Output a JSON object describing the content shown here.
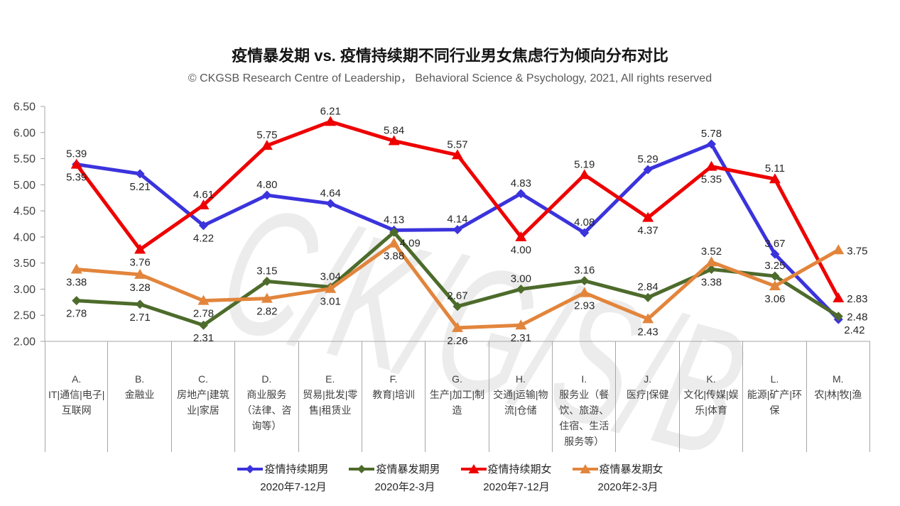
{
  "chart_data": {
    "type": "line",
    "title": "疫情暴发期 vs. 疫情持续期不同行业男女焦虑行为倾向分布对比",
    "subtitle": "© CKGSB Research Centre of Leadership， Behavioral Science & Psychology, 2021, All rights reserved",
    "watermark": "C/K/G/S/B",
    "ylim": [
      2.0,
      6.5
    ],
    "ytick_step": 0.5,
    "grid": false,
    "legend_position": "bottom",
    "categories": [
      {
        "letter": "A.",
        "label": "IT|通信|电子|互联网"
      },
      {
        "letter": "B.",
        "label": "金融业"
      },
      {
        "letter": "C.",
        "label": "房地产|建筑业|家居"
      },
      {
        "letter": "D.",
        "label": "商业服务（法律、咨询等）"
      },
      {
        "letter": "E.",
        "label": "贸易|批发|零售|租赁业"
      },
      {
        "letter": "F.",
        "label": "教育|培训"
      },
      {
        "letter": "G.",
        "label": "生产|加工|制造"
      },
      {
        "letter": "H.",
        "label": "交通|运输|物流|仓储"
      },
      {
        "letter": "I.",
        "label": "服务业（餐饮、旅游、住宿、生活服务等）"
      },
      {
        "letter": "J.",
        "label": "医疗|保健"
      },
      {
        "letter": "K.",
        "label": "文化|传媒|娱乐|体育"
      },
      {
        "letter": "L.",
        "label": "能源|矿产|环保"
      },
      {
        "letter": "M.",
        "label": "农|林|牧|渔"
      }
    ],
    "series": [
      {
        "name": "疫情持续期男",
        "period": "2020年7-12月",
        "color": "#3b33dc",
        "marker": "diamond",
        "values": [
          5.39,
          5.21,
          4.22,
          4.8,
          4.64,
          4.13,
          4.14,
          4.83,
          4.08,
          5.29,
          5.78,
          3.67,
          2.42
        ],
        "label_side": [
          "a",
          "b",
          "b",
          "a",
          "a",
          "a",
          "a",
          "a",
          "a",
          "a",
          "a",
          "a",
          "br"
        ]
      },
      {
        "name": "疫情暴发期男",
        "period": "2020年2-3月",
        "color": "#4d6b2b",
        "marker": "diamond",
        "values": [
          2.78,
          2.71,
          2.31,
          3.15,
          3.04,
          4.09,
          2.67,
          3.0,
          3.16,
          2.84,
          3.38,
          3.25,
          2.48
        ],
        "label_side": [
          "b",
          "b",
          "b",
          "a",
          "a",
          "br",
          "a",
          "a",
          "a",
          "a",
          "b",
          "a",
          "r"
        ]
      },
      {
        "name": "疫情持续期女",
        "period": "2020年7-12月",
        "color": "#ee0000",
        "marker": "triangle",
        "values": [
          5.39,
          3.76,
          4.61,
          5.75,
          6.21,
          5.84,
          5.57,
          4.0,
          5.19,
          4.37,
          5.35,
          5.11,
          2.83
        ],
        "label_side": [
          "b",
          "b",
          "a",
          "a",
          "a",
          "a",
          "a",
          "b",
          "a",
          "b",
          "b",
          "a",
          "r"
        ]
      },
      {
        "name": "疫情暴发期女",
        "period": "2020年2-3月",
        "color": "#e2853c",
        "marker": "triangle",
        "values": [
          3.38,
          3.28,
          2.78,
          2.82,
          3.01,
          3.88,
          2.26,
          2.31,
          2.93,
          2.43,
          3.52,
          3.06,
          3.75
        ],
        "label_side": [
          "b",
          "b",
          "b",
          "b",
          "b",
          "b",
          "b",
          "b",
          "b",
          "b",
          "a",
          "b",
          "r"
        ]
      }
    ],
    "colors": {
      "axis": "#a6a6a6",
      "tick_label": "#404040",
      "data_label": "#262626",
      "category_label": "#404040",
      "title": "#141414",
      "subtitle": "#595959",
      "watermark": "#ececec"
    }
  }
}
